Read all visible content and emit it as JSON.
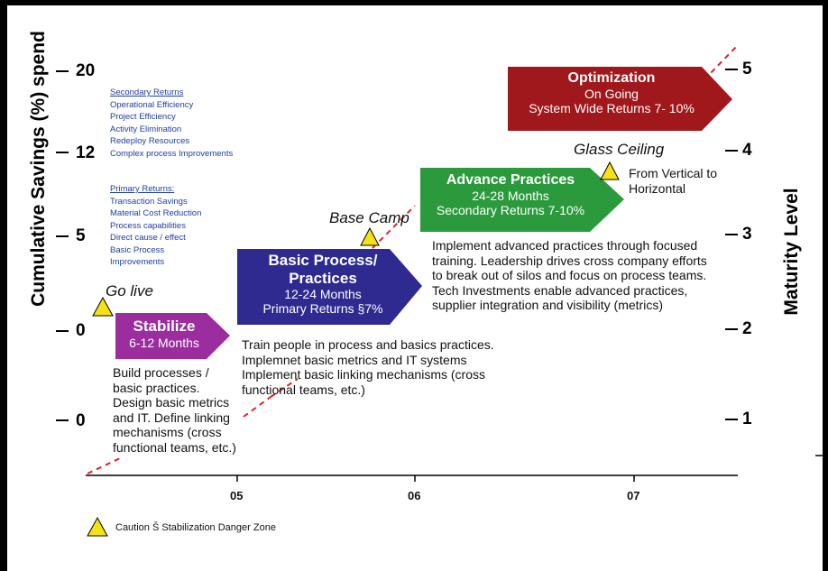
{
  "left_axis": {
    "title": "Cumulative Savings (%) spend",
    "ticks": [
      "20",
      "12",
      "5",
      "0",
      "0"
    ]
  },
  "right_axis": {
    "title": "Maturity Level",
    "ticks": [
      "5",
      "4",
      "3",
      "2",
      "1"
    ]
  },
  "x_axis": {
    "ticks": [
      "05",
      "06",
      "07"
    ]
  },
  "secondary_returns": {
    "heading": "Secondary Returns",
    "items": [
      "Operational Efficiency",
      "Project Efficiency",
      "Activity Elimination",
      "Redeploy Resources",
      "Complex process Improvements"
    ]
  },
  "primary_returns": {
    "heading": "Primary Returns:",
    "items": [
      "Transaction Savings",
      "Material Cost Reduction",
      "Process capabilities",
      "Direct cause / effect",
      "Basic Process",
      "Improvements"
    ]
  },
  "milestones": {
    "go_live": "Go live",
    "base_camp": "Base Camp",
    "glass_ceiling": "Glass Ceiling",
    "from_vertical": [
      "From Vertical to",
      "Horizontal"
    ]
  },
  "phases": {
    "stabilize": {
      "title": "Stabilize",
      "duration": "6-12 Months",
      "color": "#9b2d9f"
    },
    "basic": {
      "title_lines": [
        "Basic Process/",
        "Practices"
      ],
      "duration": "12-24 Months",
      "returns": "Primary Returns §7%",
      "color": "#2e2a8f"
    },
    "advance": {
      "title": "Advance Practices",
      "duration": "24-28 Months",
      "returns": "Secondary Returns 7-10%",
      "color": "#2b9a3c"
    },
    "optimization": {
      "title": "Optimization",
      "duration": "On Going",
      "returns": "System Wide Returns 7- 10%",
      "color": "#a0171c"
    }
  },
  "descriptions": {
    "stabilize": [
      "Build processes /",
      "basic practices.",
      "Design basic metrics",
      "and IT. Define linking",
      "mechanisms (cross",
      "functional teams, etc.)"
    ],
    "basic": [
      "Train people in process and basics practices.",
      "Implemnet basic metrics and IT systems",
      "Implement basic linking mechanisms (cross",
      "functional teams, etc.)"
    ],
    "advance": [
      "Implement advanced practices through focused",
      "training. Leadership drives cross company efforts",
      "to break out of silos and focus on process teams.",
      "Tech Investments enable advanced practices,",
      "supplier integration and visibility (metrics)"
    ]
  },
  "legend": {
    "caution": "Caution Š Stabilization Danger Zone"
  },
  "colors": {
    "trend_line": "#e0202a",
    "triangle": "#f5e216",
    "secondary_text": "#1f3f9f"
  }
}
